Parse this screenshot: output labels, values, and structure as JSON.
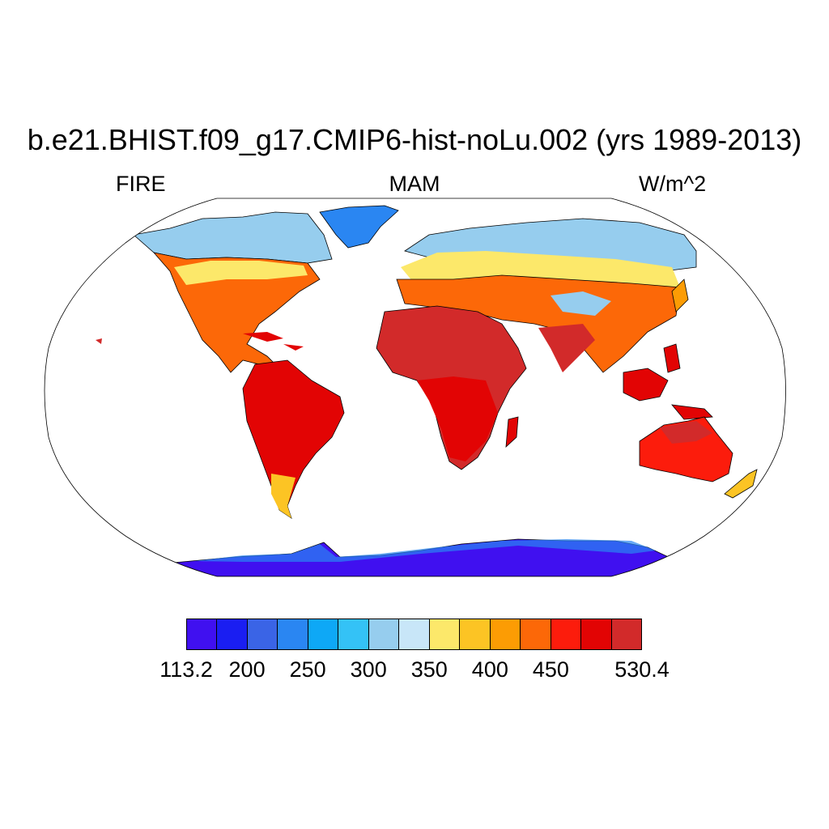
{
  "title": "b.e21.BHIST.f09_g17.CMIP6-hist-noLu.002 (yrs 1989-2013)",
  "left_label": "FIRE",
  "center_label": "MAM",
  "units_label": "W/m^2",
  "colorbar": {
    "colors": [
      "#4010f0",
      "#1a1ef2",
      "#3a64e6",
      "#2a86f2",
      "#0ea8f6",
      "#34c2f6",
      "#96cdee",
      "#c8e6f8",
      "#fce86a",
      "#fcc424",
      "#fc9c04",
      "#fc6808",
      "#fc1c0c",
      "#e20404",
      "#d22a2a"
    ],
    "labels": [
      "113.2",
      "200",
      "250",
      "300",
      "350",
      "400",
      "450",
      "530.4"
    ],
    "min": 113.2,
    "max": 530.4
  },
  "map": {
    "projection": "Robinson",
    "variable": "FIRE",
    "units": "W/m^2",
    "regions": [
      {
        "name": "antarctica",
        "value": 150
      },
      {
        "name": "greenland",
        "value": 230
      },
      {
        "name": "arctic-canada",
        "value": 320
      },
      {
        "name": "north-america-south",
        "value": 470
      },
      {
        "name": "south-america",
        "value": 500
      },
      {
        "name": "africa",
        "value": 520
      },
      {
        "name": "europe-asia-north",
        "value": 330
      },
      {
        "name": "asia-south",
        "value": 500
      },
      {
        "name": "australia",
        "value": 480
      }
    ]
  }
}
